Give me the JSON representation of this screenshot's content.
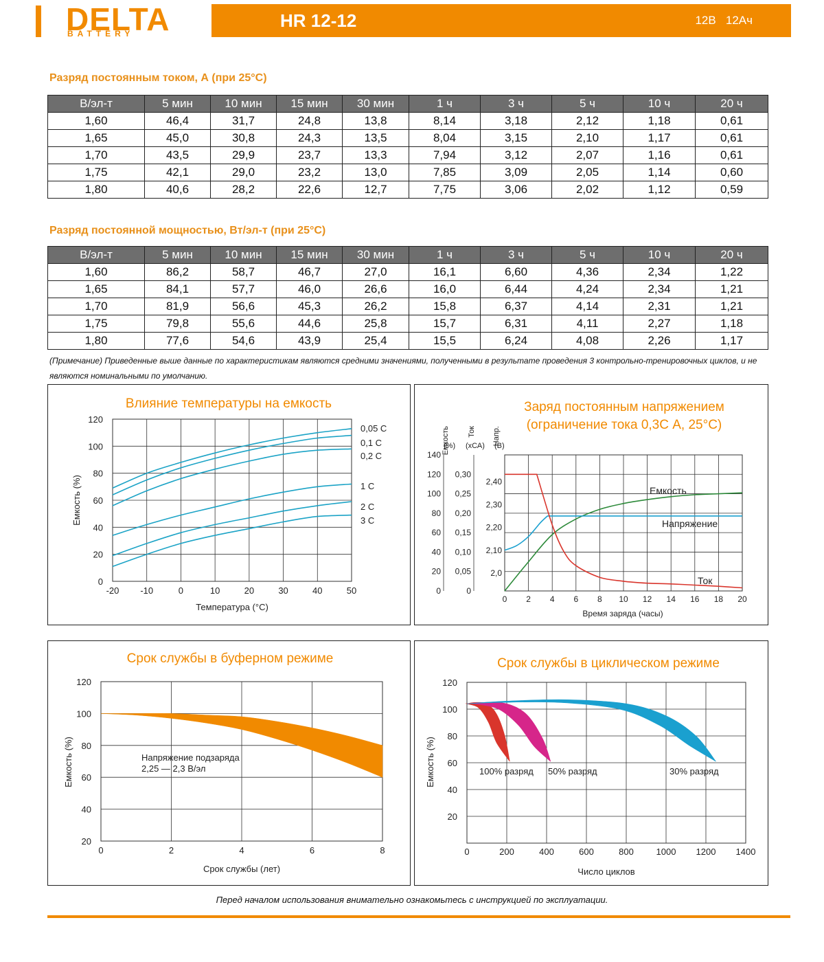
{
  "header": {
    "brand": "DELTA",
    "brand_sub": "BATTERY",
    "model": "HR 12-12",
    "voltage": "12В",
    "capacity": "12Ач"
  },
  "table_current": {
    "title": "Разряд постоянным током, А (при 25°С)",
    "headers": [
      "В/эл-т",
      "5 мин",
      "10 мин",
      "15 мин",
      "30 мин",
      "1 ч",
      "3 ч",
      "5 ч",
      "10 ч",
      "20 ч"
    ],
    "rows": [
      [
        "1,60",
        "46,4",
        "31,7",
        "24,8",
        "13,8",
        "8,14",
        "3,18",
        "2,12",
        "1,18",
        "0,61"
      ],
      [
        "1,65",
        "45,0",
        "30,8",
        "24,3",
        "13,5",
        "8,04",
        "3,15",
        "2,10",
        "1,17",
        "0,61"
      ],
      [
        "1,70",
        "43,5",
        "29,9",
        "23,7",
        "13,3",
        "7,94",
        "3,12",
        "2,07",
        "1,16",
        "0,61"
      ],
      [
        "1,75",
        "42,1",
        "29,0",
        "23,2",
        "13,0",
        "7,85",
        "3,09",
        "2,05",
        "1,14",
        "0,60"
      ],
      [
        "1,80",
        "40,6",
        "28,2",
        "22,6",
        "12,7",
        "7,75",
        "3,06",
        "2,02",
        "1,12",
        "0,59"
      ]
    ]
  },
  "table_power": {
    "title": "Разряд постоянной мощностью, Вт/эл-т (при 25°С)",
    "headers": [
      "В/эл-т",
      "5 мин",
      "10 мин",
      "15 мин",
      "30 мин",
      "1 ч",
      "3 ч",
      "5 ч",
      "10 ч",
      "20 ч"
    ],
    "rows": [
      [
        "1,60",
        "86,2",
        "58,7",
        "46,7",
        "27,0",
        "16,1",
        "6,60",
        "4,36",
        "2,34",
        "1,22"
      ],
      [
        "1,65",
        "84,1",
        "57,7",
        "46,0",
        "26,6",
        "16,0",
        "6,44",
        "4,24",
        "2,34",
        "1,21"
      ],
      [
        "1,70",
        "81,9",
        "56,6",
        "45,3",
        "26,2",
        "15,8",
        "6,37",
        "4,14",
        "2,31",
        "1,21"
      ],
      [
        "1,75",
        "79,8",
        "55,6",
        "44,6",
        "25,8",
        "15,7",
        "6,31",
        "4,11",
        "2,27",
        "1,18"
      ],
      [
        "1,80",
        "77,6",
        "54,6",
        "43,9",
        "25,4",
        "15,5",
        "6,24",
        "4,08",
        "2,26",
        "1,17"
      ]
    ]
  },
  "note": "(Примечание) Приведенные выше данные по характеристикам являются средними значениями, полученными в результате проведения 3 контрольно-тренировочных циклов, и не являются номинальными по умолчанию.",
  "footer_note": "Перед началом использования внимательно ознакомьтесь с инструкцией по эксплуатации.",
  "colors": {
    "accent": "#f18a00",
    "title": "#e8901a",
    "blue": "#1ba3c6",
    "green": "#2d8a3a",
    "red": "#d9352c",
    "magenta": "#d6268a",
    "cyan": "#1aa0cf"
  },
  "chart_data": [
    {
      "type": "line",
      "title": "Влияние температуры на емкость",
      "xlabel": "Температура (°C)",
      "ylabel": "Емкость (%)",
      "x_ticks": [
        "-20",
        "-10",
        "0",
        "10",
        "20",
        "30",
        "40",
        "50"
      ],
      "y_ticks": [
        "0",
        "20",
        "40",
        "60",
        "80",
        "100",
        "120"
      ],
      "xlim": [
        -20,
        50
      ],
      "ylim": [
        0,
        120
      ],
      "grid": true,
      "x": [
        -20,
        -10,
        0,
        10,
        20,
        30,
        40,
        50
      ],
      "series": [
        {
          "name": "0,05 С",
          "values": [
            69,
            80,
            88,
            95,
            101,
            106,
            110,
            113
          ]
        },
        {
          "name": "0,1 С",
          "values": [
            64,
            75,
            84,
            91,
            97,
            102,
            106,
            108
          ]
        },
        {
          "name": "0,2 С",
          "values": [
            56,
            67,
            76,
            83,
            89,
            94,
            97,
            98
          ]
        },
        {
          "name": "1 С",
          "values": [
            34,
            42,
            49,
            55,
            61,
            66,
            70,
            72
          ]
        },
        {
          "name": "2 С",
          "values": [
            19,
            28,
            36,
            42,
            47,
            52,
            56,
            59
          ]
        },
        {
          "name": "3 С",
          "values": [
            11,
            20,
            28,
            34,
            39,
            44,
            48,
            49
          ]
        }
      ]
    },
    {
      "type": "line",
      "title": "Заряд постоянным напряжением",
      "subtitle": "(ограничение тока 0,3С А, 25°С)",
      "xlabel": "Время заряда (часы)",
      "axis_captions": [
        "Емкость",
        "Ток",
        "Напр."
      ],
      "axis_units": [
        "(%)",
        "(хСА)",
        "(В)"
      ],
      "x_ticks": [
        "0",
        "2",
        "4",
        "6",
        "8",
        "10",
        "12",
        "14",
        "16",
        "18",
        "20"
      ],
      "y_ticks_capacity": [
        "0",
        "20",
        "40",
        "60",
        "80",
        "100",
        "120",
        "140"
      ],
      "y_ticks_current": [
        "0",
        "0,05",
        "0,10",
        "0,15",
        "0,20",
        "0,25",
        "0,30"
      ],
      "y_ticks_voltage": [
        "2,0",
        "2,10",
        "2,20",
        "2,30",
        "2,40"
      ],
      "xlim": [
        0,
        20
      ],
      "grid": true,
      "series": [
        {
          "name": "Емкость",
          "axis": "capacity",
          "x": [
            0,
            2,
            4,
            6,
            8,
            10,
            12,
            14,
            16,
            18,
            20
          ],
          "values": [
            0,
            30,
            58,
            74,
            84,
            90,
            94,
            97,
            99,
            100,
            101
          ]
        },
        {
          "name": "Напряжение",
          "axis": "voltage",
          "x": [
            0,
            1,
            2,
            3,
            3.6,
            20
          ],
          "values": [
            2.1,
            2.12,
            2.16,
            2.22,
            2.25,
            2.25
          ]
        },
        {
          "name": "Ток",
          "axis": "current",
          "x": [
            0,
            2.7,
            4,
            5,
            6,
            8,
            10,
            12,
            14,
            16,
            18,
            20
          ],
          "values": [
            0.3,
            0.3,
            0.17,
            0.1,
            0.065,
            0.035,
            0.025,
            0.02,
            0.018,
            0.015,
            0.012,
            0.008
          ]
        }
      ]
    },
    {
      "type": "area",
      "title": "Срок службы в буферном режиме",
      "xlabel": "Срок службы (лет)",
      "ylabel": "Емкость (%)",
      "x_ticks": [
        "0",
        "2",
        "4",
        "6",
        "8"
      ],
      "y_ticks": [
        "20",
        "40",
        "60",
        "80",
        "100",
        "120"
      ],
      "xlim": [
        0,
        8
      ],
      "ylim": [
        20,
        120
      ],
      "grid": true,
      "annotation": [
        "Напряжение подзаряда",
        "2,25 — 2,3 В/эл"
      ],
      "x": [
        0,
        1,
        2,
        3,
        4,
        5,
        6,
        7,
        8
      ],
      "band_upper": [
        100,
        100,
        100,
        99,
        98,
        95,
        91,
        86,
        80
      ],
      "band_lower": [
        100,
        99,
        97,
        94,
        90,
        84,
        77,
        69,
        60
      ]
    },
    {
      "type": "area",
      "title": "Срок службы в циклическом режиме",
      "xlabel": "Число циклов",
      "ylabel": "Емкость (%)",
      "x_ticks": [
        "0",
        "200",
        "400",
        "600",
        "800",
        "1000",
        "1200",
        "1400"
      ],
      "y_ticks": [
        "20",
        "40",
        "60",
        "80",
        "100",
        "120"
      ],
      "xlim": [
        0,
        1400
      ],
      "ylim": [
        0,
        120
      ],
      "grid": true,
      "series": [
        {
          "name": "100% разряд",
          "x": [
            0,
            40,
            100,
            150,
            190,
            215
          ],
          "upper": [
            104,
            105,
            104,
            96,
            80,
            61
          ],
          "lower": [
            104,
            104,
            101,
            90,
            75,
            61
          ]
        },
        {
          "name": "50% разряд",
          "x": [
            0,
            80,
            200,
            300,
            380,
            420
          ],
          "upper": [
            104,
            105,
            104,
            96,
            78,
            61
          ],
          "lower": [
            104,
            104,
            100,
            88,
            72,
            61
          ]
        },
        {
          "name": "30% разряд",
          "x": [
            0,
            200,
            500,
            800,
            1000,
            1150,
            1250
          ],
          "upper": [
            104,
            106,
            107,
            104,
            95,
            80,
            61
          ],
          "lower": [
            104,
            105,
            105,
            100,
            88,
            73,
            61
          ]
        }
      ]
    }
  ]
}
